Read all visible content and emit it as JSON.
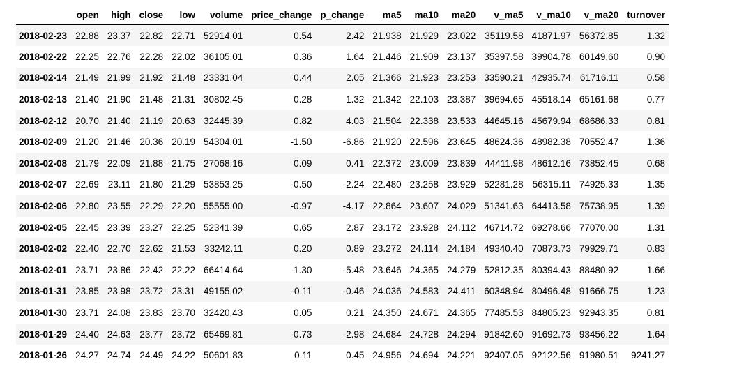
{
  "table": {
    "columns": [
      "open",
      "high",
      "close",
      "low",
      "volume",
      "price_change",
      "p_change",
      "ma5",
      "ma10",
      "ma20",
      "v_ma5",
      "v_ma10",
      "v_ma20",
      "turnover"
    ],
    "rows": [
      {
        "date": "2018-02-23",
        "cells": [
          "22.88",
          "23.37",
          "22.82",
          "22.71",
          "52914.01",
          "0.54",
          "2.42",
          "21.938",
          "21.929",
          "23.022",
          "35119.58",
          "41871.97",
          "56372.85",
          "1.32"
        ]
      },
      {
        "date": "2018-02-22",
        "cells": [
          "22.25",
          "22.76",
          "22.28",
          "22.02",
          "36105.01",
          "0.36",
          "1.64",
          "21.446",
          "21.909",
          "23.137",
          "35397.58",
          "39904.78",
          "60149.60",
          "0.90"
        ]
      },
      {
        "date": "2018-02-14",
        "cells": [
          "21.49",
          "21.99",
          "21.92",
          "21.48",
          "23331.04",
          "0.44",
          "2.05",
          "21.366",
          "21.923",
          "23.253",
          "33590.21",
          "42935.74",
          "61716.11",
          "0.58"
        ]
      },
      {
        "date": "2018-02-13",
        "cells": [
          "21.40",
          "21.90",
          "21.48",
          "21.31",
          "30802.45",
          "0.28",
          "1.32",
          "21.342",
          "22.103",
          "23.387",
          "39694.65",
          "45518.14",
          "65161.68",
          "0.77"
        ]
      },
      {
        "date": "2018-02-12",
        "cells": [
          "20.70",
          "21.40",
          "21.19",
          "20.63",
          "32445.39",
          "0.82",
          "4.03",
          "21.504",
          "22.338",
          "23.533",
          "44645.16",
          "45679.94",
          "68686.33",
          "0.81"
        ]
      },
      {
        "date": "2018-02-09",
        "cells": [
          "21.20",
          "21.46",
          "20.36",
          "20.19",
          "54304.01",
          "-1.50",
          "-6.86",
          "21.920",
          "22.596",
          "23.645",
          "48624.36",
          "48982.38",
          "70552.47",
          "1.36"
        ]
      },
      {
        "date": "2018-02-08",
        "cells": [
          "21.79",
          "22.09",
          "21.88",
          "21.75",
          "27068.16",
          "0.09",
          "0.41",
          "22.372",
          "23.009",
          "23.839",
          "44411.98",
          "48612.16",
          "73852.45",
          "0.68"
        ]
      },
      {
        "date": "2018-02-07",
        "cells": [
          "22.69",
          "23.11",
          "21.80",
          "21.29",
          "53853.25",
          "-0.50",
          "-2.24",
          "22.480",
          "23.258",
          "23.929",
          "52281.28",
          "56315.11",
          "74925.33",
          "1.35"
        ]
      },
      {
        "date": "2018-02-06",
        "cells": [
          "22.80",
          "23.55",
          "22.29",
          "22.20",
          "55555.00",
          "-0.97",
          "-4.17",
          "22.864",
          "23.607",
          "24.029",
          "51341.63",
          "64413.58",
          "75738.95",
          "1.39"
        ]
      },
      {
        "date": "2018-02-05",
        "cells": [
          "22.45",
          "23.39",
          "23.27",
          "22.25",
          "52341.39",
          "0.65",
          "2.87",
          "23.172",
          "23.928",
          "24.112",
          "46714.72",
          "69278.66",
          "77070.00",
          "1.31"
        ]
      },
      {
        "date": "2018-02-02",
        "cells": [
          "22.40",
          "22.70",
          "22.62",
          "21.53",
          "33242.11",
          "0.20",
          "0.89",
          "23.272",
          "24.114",
          "24.184",
          "49340.40",
          "70873.73",
          "79929.71",
          "0.83"
        ]
      },
      {
        "date": "2018-02-01",
        "cells": [
          "23.71",
          "23.86",
          "22.42",
          "22.22",
          "66414.64",
          "-1.30",
          "-5.48",
          "23.646",
          "24.365",
          "24.279",
          "52812.35",
          "80394.43",
          "88480.92",
          "1.66"
        ]
      },
      {
        "date": "2018-01-31",
        "cells": [
          "23.85",
          "23.98",
          "23.72",
          "23.31",
          "49155.02",
          "-0.11",
          "-0.46",
          "24.036",
          "24.583",
          "24.411",
          "60348.94",
          "80496.48",
          "91666.75",
          "1.23"
        ]
      },
      {
        "date": "2018-01-30",
        "cells": [
          "23.71",
          "24.08",
          "23.83",
          "23.70",
          "32420.43",
          "0.05",
          "0.21",
          "24.350",
          "24.671",
          "24.365",
          "77485.53",
          "84805.23",
          "92943.35",
          "0.81"
        ]
      },
      {
        "date": "2018-01-29",
        "cells": [
          "24.40",
          "24.63",
          "23.77",
          "23.72",
          "65469.81",
          "-0.73",
          "-2.98",
          "24.684",
          "24.728",
          "24.294",
          "91842.60",
          "91692.73",
          "93456.22",
          "1.64"
        ]
      },
      {
        "date": "2018-01-26",
        "cells": [
          "24.27",
          "24.74",
          "24.49",
          "24.22",
          "50601.83",
          "0.11",
          "0.45",
          "24.956",
          "24.694",
          "24.221",
          "92407.05",
          "92122.56",
          "91980.51",
          "9241.27"
        ]
      }
    ]
  }
}
